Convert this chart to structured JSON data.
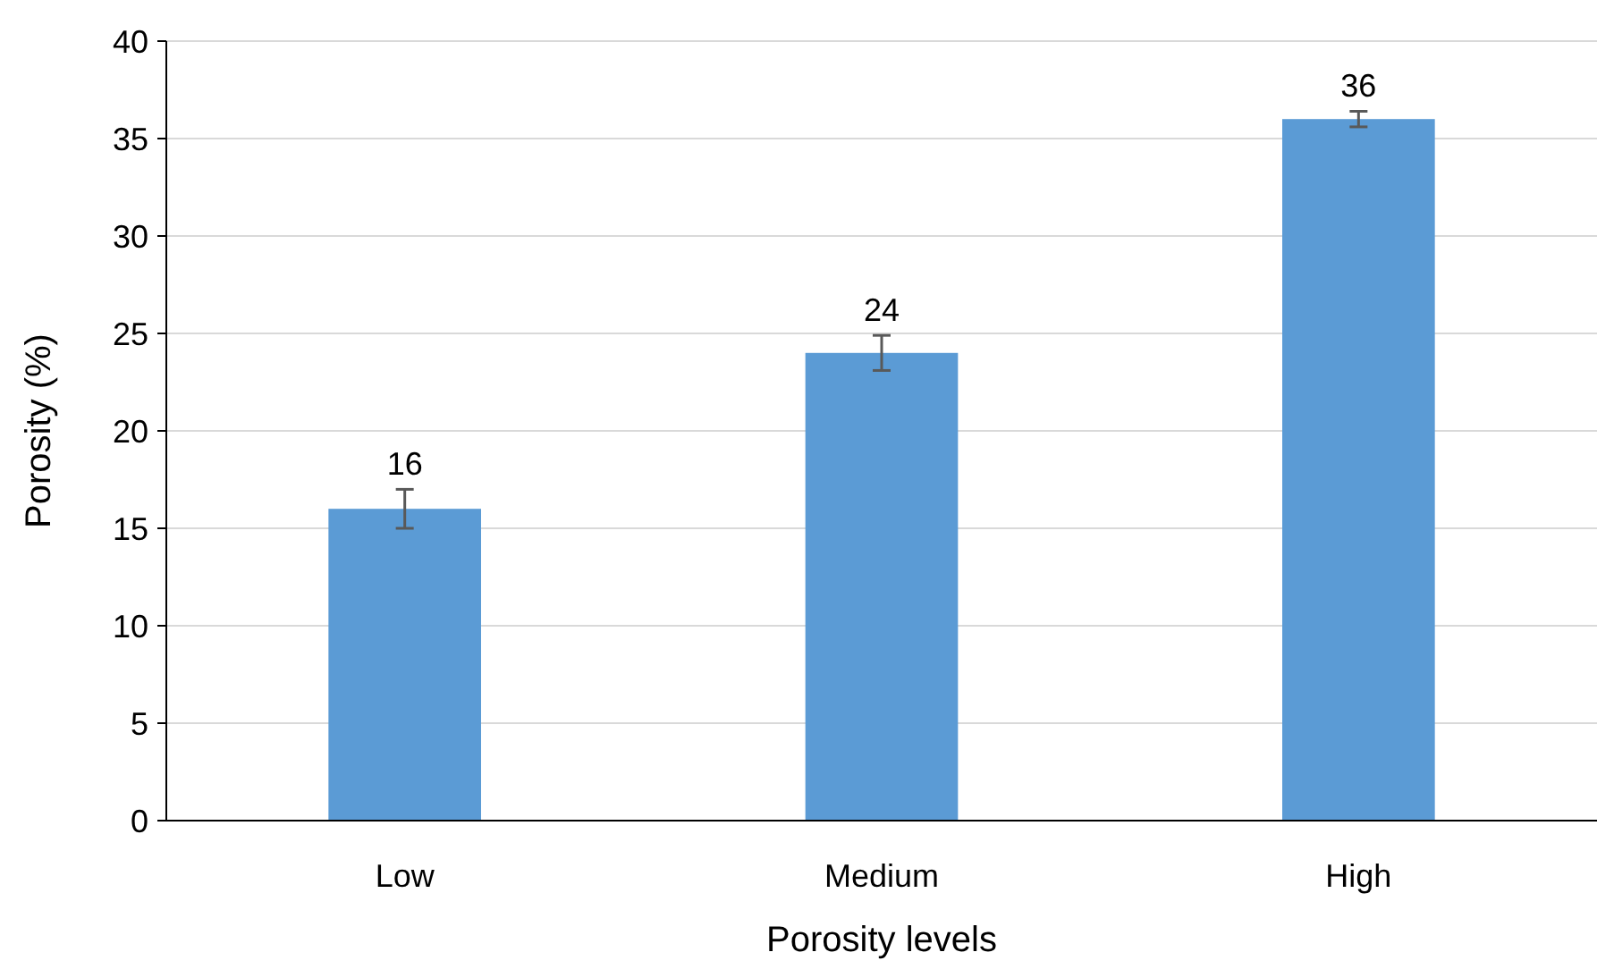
{
  "chart_data": {
    "type": "bar",
    "xlabel": "Porosity levels",
    "ylabel": "Porosity (%)",
    "categories": [
      "Low",
      "Medium",
      "High"
    ],
    "values": [
      16,
      24,
      36
    ],
    "errors": [
      1,
      0.9,
      0.4
    ],
    "color": "#5b9bd5",
    "ylim": [
      0,
      40
    ],
    "yticks": [
      0,
      5,
      10,
      15,
      20,
      25,
      30,
      35,
      40
    ],
    "grid": "y",
    "data_labels": true
  }
}
